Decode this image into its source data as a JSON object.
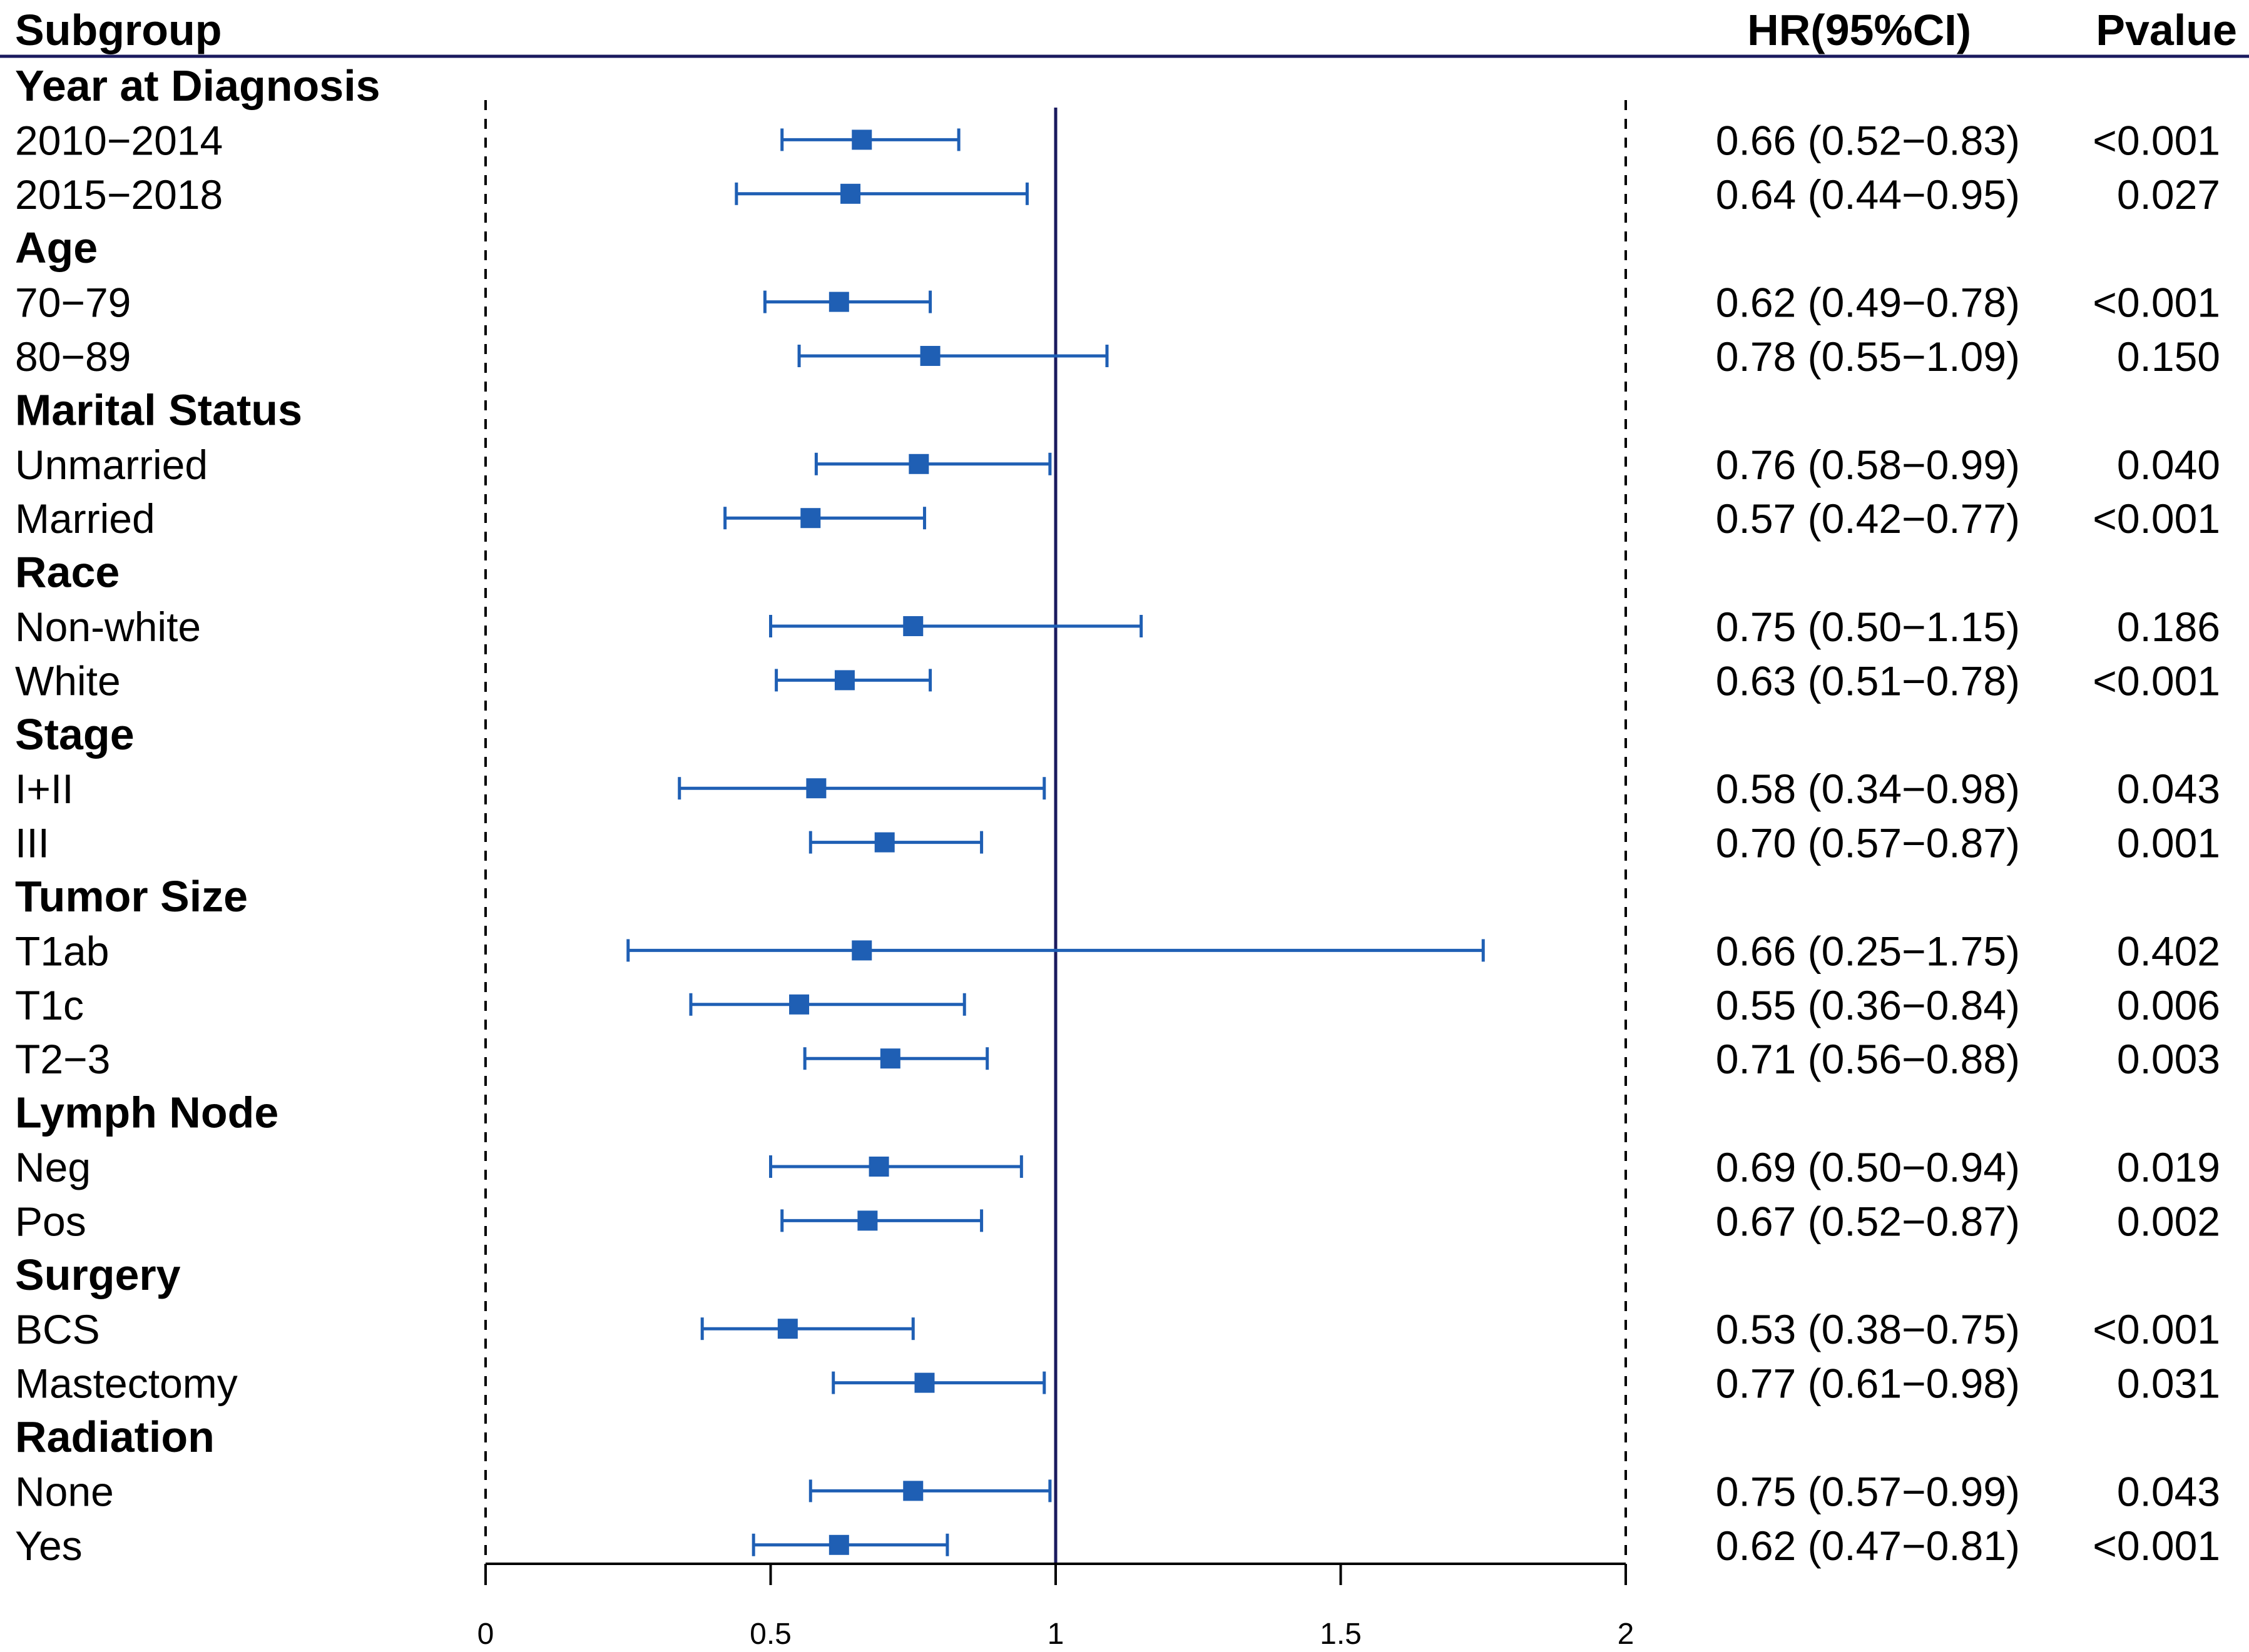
{
  "header": {
    "subgroup": "Subgroup",
    "hr": "HR(95%CI)",
    "pvalue": "Pvalue"
  },
  "colors": {
    "marker": "#1f5fb4",
    "reference_line": "#1a1a5e",
    "header_rule": "#1a1a5e"
  },
  "chart_data": {
    "type": "forest",
    "xlim": [
      0,
      2
    ],
    "x_ticks": [
      "0",
      "0.5",
      "1",
      "1.5",
      "2"
    ],
    "reference_line": 1,
    "dashed_lines": [
      0,
      2
    ],
    "rows": [
      {
        "kind": "group",
        "label": "Year at Diagnosis"
      },
      {
        "kind": "item",
        "label": "2010−2014",
        "hr": 0.66,
        "lo": 0.52,
        "hi": 0.83,
        "text": "0.66 (0.52−0.83)",
        "p": "<0.001"
      },
      {
        "kind": "item",
        "label": "2015−2018",
        "hr": 0.64,
        "lo": 0.44,
        "hi": 0.95,
        "text": "0.64 (0.44−0.95)",
        "p": "0.027"
      },
      {
        "kind": "group",
        "label": "Age"
      },
      {
        "kind": "item",
        "label": "70−79",
        "hr": 0.62,
        "lo": 0.49,
        "hi": 0.78,
        "text": "0.62 (0.49−0.78)",
        "p": "<0.001"
      },
      {
        "kind": "item",
        "label": "80−89",
        "hr": 0.78,
        "lo": 0.55,
        "hi": 1.09,
        "text": "0.78 (0.55−1.09)",
        "p": "0.150"
      },
      {
        "kind": "group",
        "label": "Marital Status"
      },
      {
        "kind": "item",
        "label": "Unmarried",
        "hr": 0.76,
        "lo": 0.58,
        "hi": 0.99,
        "text": "0.76 (0.58−0.99)",
        "p": "0.040"
      },
      {
        "kind": "item",
        "label": "Married",
        "hr": 0.57,
        "lo": 0.42,
        "hi": 0.77,
        "text": "0.57 (0.42−0.77)",
        "p": "<0.001"
      },
      {
        "kind": "group",
        "label": "Race"
      },
      {
        "kind": "item",
        "label": "Non-white",
        "hr": 0.75,
        "lo": 0.5,
        "hi": 1.15,
        "text": "0.75 (0.50−1.15)",
        "p": "0.186"
      },
      {
        "kind": "item",
        "label": "White",
        "hr": 0.63,
        "lo": 0.51,
        "hi": 0.78,
        "text": "0.63 (0.51−0.78)",
        "p": "<0.001"
      },
      {
        "kind": "group",
        "label": "Stage"
      },
      {
        "kind": "item",
        "label": "I+II",
        "hr": 0.58,
        "lo": 0.34,
        "hi": 0.98,
        "text": "0.58 (0.34−0.98)",
        "p": "0.043"
      },
      {
        "kind": "item",
        "label": "III",
        "hr": 0.7,
        "lo": 0.57,
        "hi": 0.87,
        "text": "0.70 (0.57−0.87)",
        "p": "0.001"
      },
      {
        "kind": "group",
        "label": "Tumor Size"
      },
      {
        "kind": "item",
        "label": "T1ab",
        "hr": 0.66,
        "lo": 0.25,
        "hi": 1.75,
        "text": "0.66 (0.25−1.75)",
        "p": "0.402"
      },
      {
        "kind": "item",
        "label": "T1c",
        "hr": 0.55,
        "lo": 0.36,
        "hi": 0.84,
        "text": "0.55 (0.36−0.84)",
        "p": "0.006"
      },
      {
        "kind": "item",
        "label": "T2−3",
        "hr": 0.71,
        "lo": 0.56,
        "hi": 0.88,
        "text": "0.71 (0.56−0.88)",
        "p": "0.003"
      },
      {
        "kind": "group",
        "label": "Lymph Node"
      },
      {
        "kind": "item",
        "label": "Neg",
        "hr": 0.69,
        "lo": 0.5,
        "hi": 0.94,
        "text": "0.69 (0.50−0.94)",
        "p": "0.019"
      },
      {
        "kind": "item",
        "label": "Pos",
        "hr": 0.67,
        "lo": 0.52,
        "hi": 0.87,
        "text": "0.67 (0.52−0.87)",
        "p": "0.002"
      },
      {
        "kind": "group",
        "label": "Surgery"
      },
      {
        "kind": "item",
        "label": "BCS",
        "hr": 0.53,
        "lo": 0.38,
        "hi": 0.75,
        "text": "0.53 (0.38−0.75)",
        "p": "<0.001"
      },
      {
        "kind": "item",
        "label": "Mastectomy",
        "hr": 0.77,
        "lo": 0.61,
        "hi": 0.98,
        "text": "0.77 (0.61−0.98)",
        "p": "0.031"
      },
      {
        "kind": "group",
        "label": "Radiation"
      },
      {
        "kind": "item",
        "label": "None",
        "hr": 0.75,
        "lo": 0.57,
        "hi": 0.99,
        "text": "0.75 (0.57−0.99)",
        "p": "0.043"
      },
      {
        "kind": "item",
        "label": "Yes",
        "hr": 0.62,
        "lo": 0.47,
        "hi": 0.81,
        "text": "0.62 (0.47−0.81)",
        "p": "<0.001"
      }
    ]
  }
}
